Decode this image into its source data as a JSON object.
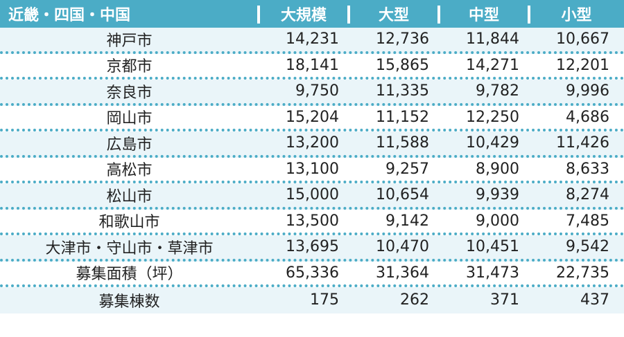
{
  "header": {
    "region": "近畿・四国・中国",
    "columns": [
      "大規模",
      "大型",
      "中型",
      "小型"
    ]
  },
  "rows": [
    {
      "label": "神戸市",
      "values": [
        "14,231",
        "12,736",
        "11,844",
        "10,667"
      ]
    },
    {
      "label": "京都市",
      "values": [
        "18,141",
        "15,865",
        "14,271",
        "12,201"
      ]
    },
    {
      "label": "奈良市",
      "values": [
        "9,750",
        "11,335",
        "9,782",
        "9,996"
      ]
    },
    {
      "label": "岡山市",
      "values": [
        "15,204",
        "11,152",
        "12,250",
        "4,686"
      ]
    },
    {
      "label": "広島市",
      "values": [
        "13,200",
        "11,588",
        "10,429",
        "11,426"
      ]
    },
    {
      "label": "高松市",
      "values": [
        "13,100",
        "9,257",
        "8,900",
        "8,633"
      ]
    },
    {
      "label": "松山市",
      "values": [
        "15,000",
        "10,654",
        "9,939",
        "8,274"
      ]
    },
    {
      "label": "和歌山市",
      "values": [
        "13,500",
        "9,142",
        "9,000",
        "7,485"
      ]
    },
    {
      "label": "大津市・守山市・草津市",
      "values": [
        "13,695",
        "10,470",
        "10,451",
        "9,542"
      ]
    },
    {
      "label": "募集面積（坪）",
      "values": [
        "65,336",
        "31,364",
        "31,473",
        "22,735"
      ]
    },
    {
      "label": "募集棟数",
      "values": [
        "175",
        "262",
        "371",
        "437"
      ]
    }
  ],
  "colors": {
    "header_bg": "#4bacc6",
    "stripe_bg": "#eaf5f9",
    "divider": "#4bacc6"
  }
}
